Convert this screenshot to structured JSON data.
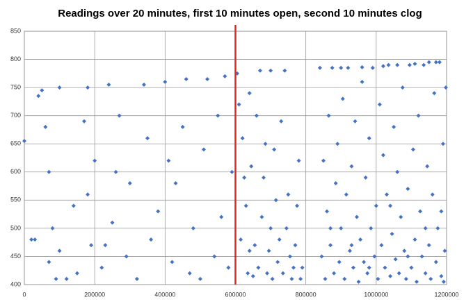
{
  "chart_data": {
    "type": "scatter",
    "title": "Readings over 20 minutes, first 10 minutes open, second 10 minutes clog",
    "color": "#4472c4",
    "x": [
      0,
      20000,
      40000,
      50000,
      60000,
      70000,
      80000,
      70000,
      90000,
      100000,
      120000,
      150000,
      170000,
      180000,
      180000,
      190000,
      200000,
      220000,
      240000,
      250000,
      270000,
      290000,
      300000,
      320000,
      340000,
      360000,
      380000,
      400000,
      410000,
      420000,
      430000,
      450000,
      460000,
      480000,
      500000,
      510000,
      520000,
      540000,
      550000,
      560000,
      570000,
      580000,
      590000,
      100000,
      140000,
      260000,
      350000,
      470000,
      30000,
      230000,
      605000,
      610000,
      620000,
      630000,
      640000,
      650000,
      660000,
      670000,
      680000,
      690000,
      700000,
      710000,
      720000,
      730000,
      740000,
      750000,
      760000,
      770000,
      780000,
      790000,
      615000,
      625000,
      645000,
      655000,
      665000,
      675000,
      685000,
      695000,
      705000,
      715000,
      725000,
      735000,
      745000,
      755000,
      765000,
      775000,
      785000,
      635000,
      700000,
      640000,
      840000,
      845000,
      850000,
      855000,
      860000,
      865000,
      870000,
      875000,
      880000,
      885000,
      890000,
      895000,
      900000,
      905000,
      910000,
      915000,
      920000,
      925000,
      930000,
      935000,
      940000,
      945000,
      950000,
      955000,
      960000,
      965000,
      970000,
      975000,
      980000,
      985000,
      990000,
      995000,
      1000000,
      1005000,
      1010000,
      1015000,
      1020000,
      1025000,
      1030000,
      1035000,
      1040000,
      1045000,
      1050000,
      1055000,
      1060000,
      1065000,
      1070000,
      1075000,
      1080000,
      1085000,
      1090000,
      1095000,
      1100000,
      1105000,
      1110000,
      1115000,
      1120000,
      1125000,
      1130000,
      1135000,
      1140000,
      1145000,
      1150000,
      1155000,
      1160000,
      1165000,
      1170000,
      1175000,
      1180000,
      1185000,
      1190000,
      1195000,
      1198000,
      1192000,
      1170000,
      1150000,
      1110000,
      1060000,
      1020000,
      960000,
      900000,
      870000,
      930000,
      980000,
      1040000,
      1090000,
      1140000,
      1185000
    ],
    "values": [
      655,
      480,
      735,
      745,
      680,
      600,
      500,
      440,
      410,
      750,
      410,
      420,
      690,
      750,
      560,
      470,
      620,
      430,
      755,
      510,
      700,
      450,
      580,
      410,
      755,
      480,
      530,
      760,
      620,
      440,
      580,
      680,
      765,
      500,
      410,
      640,
      765,
      450,
      700,
      520,
      770,
      430,
      600,
      460,
      540,
      600,
      660,
      420,
      480,
      470,
      775,
      720,
      660,
      540,
      460,
      415,
      700,
      780,
      590,
      420,
      500,
      640,
      440,
      690,
      780,
      560,
      410,
      470,
      620,
      430,
      480,
      590,
      610,
      470,
      430,
      520,
      650,
      460,
      410,
      550,
      480,
      420,
      500,
      450,
      430,
      540,
      410,
      420,
      780,
      740,
      785,
      450,
      620,
      410,
      530,
      700,
      470,
      785,
      420,
      580,
      650,
      440,
      500,
      730,
      410,
      560,
      785,
      460,
      610,
      430,
      690,
      520,
      405,
      480,
      760,
      440,
      590,
      420,
      660,
      500,
      785,
      450,
      540,
      410,
      720,
      470,
      630,
      430,
      560,
      790,
      415,
      490,
      680,
      445,
      600,
      420,
      520,
      750,
      460,
      410,
      570,
      790,
      430,
      640,
      480,
      405,
      700,
      530,
      450,
      790,
      420,
      610,
      470,
      410,
      560,
      740,
      440,
      500,
      795,
      415,
      650,
      460,
      750,
      405,
      795,
      795,
      792,
      790,
      788,
      786,
      785,
      500,
      470,
      430,
      540,
      450,
      500,
      530
    ],
    "xlim": [
      0,
      1200000
    ],
    "ylim": [
      400,
      850
    ],
    "xticks": [
      0,
      200000,
      400000,
      600000,
      800000,
      1000000,
      1200000
    ],
    "yticks": [
      400,
      450,
      500,
      550,
      600,
      650,
      700,
      750,
      800,
      850
    ],
    "grid": true,
    "vline": {
      "x": 600000,
      "color": "#e8231c"
    }
  }
}
